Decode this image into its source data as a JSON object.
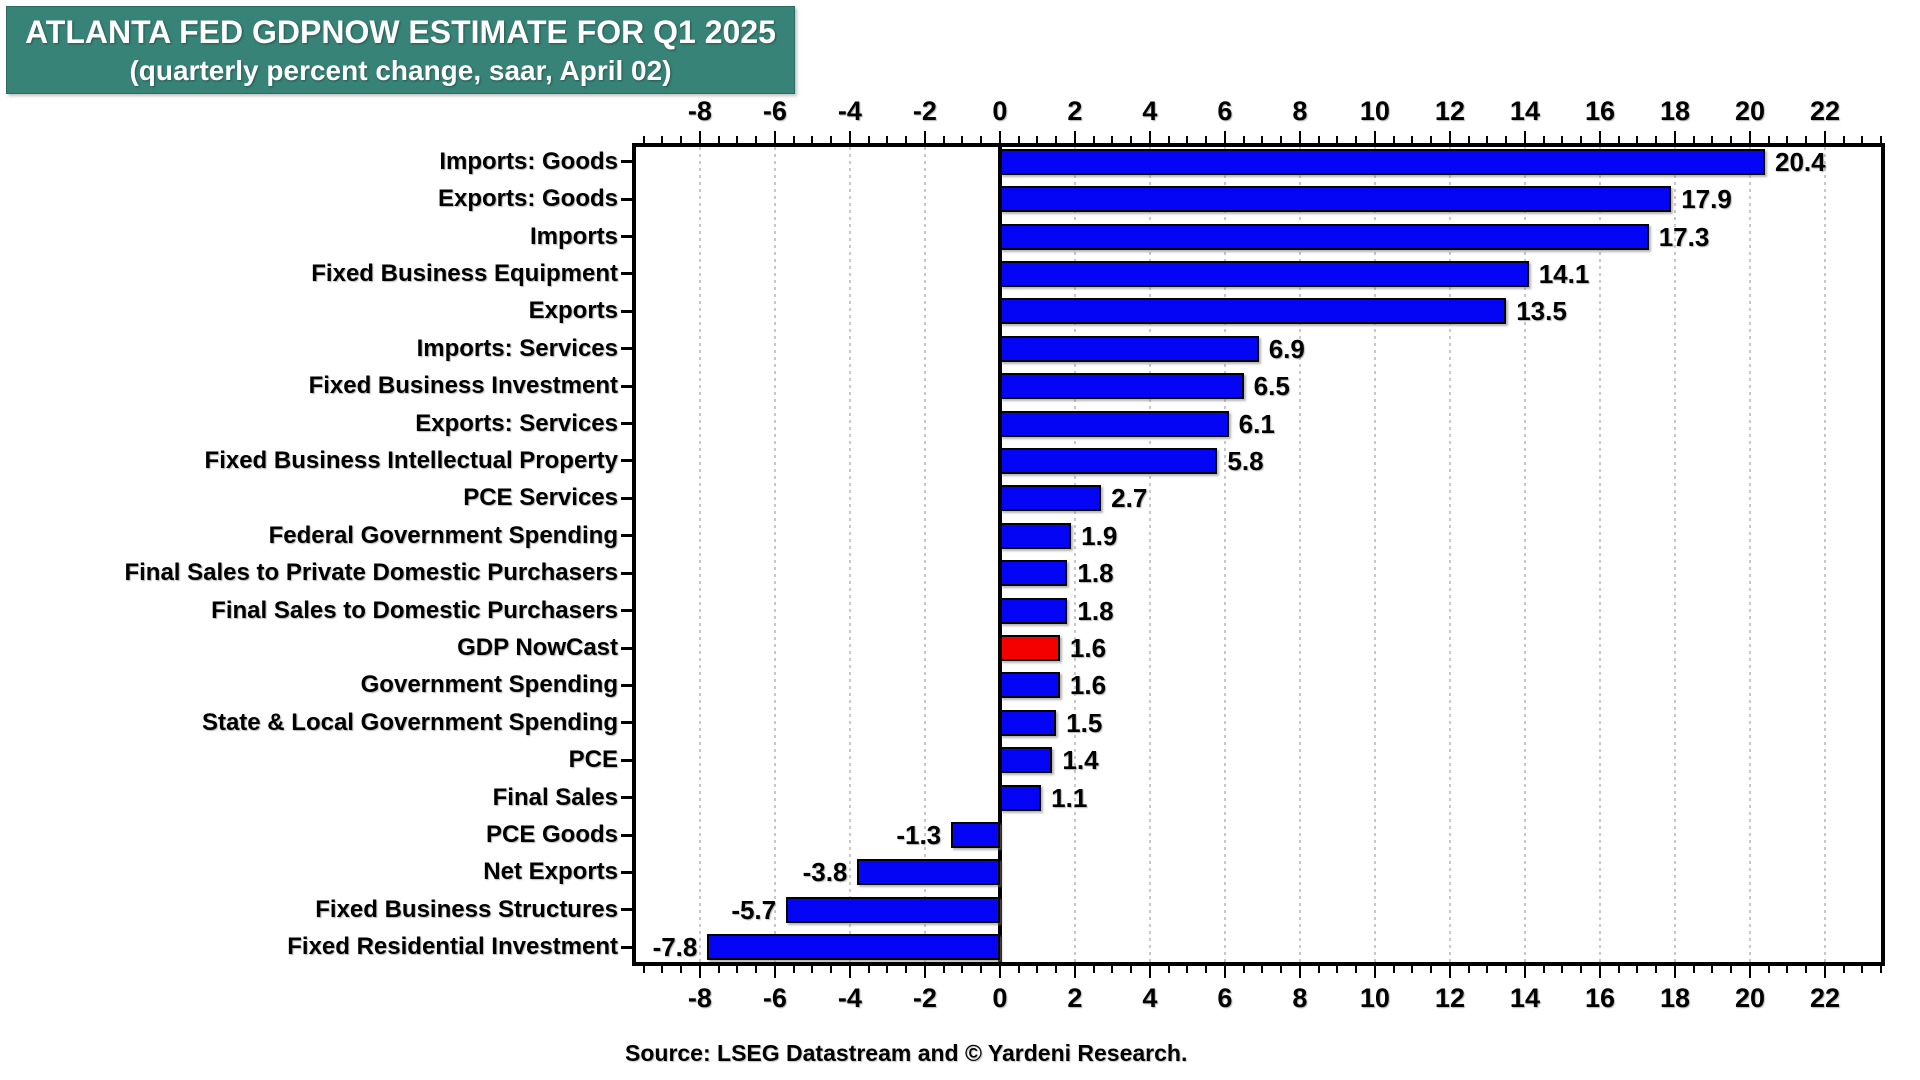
{
  "chart_data": {
    "type": "bar",
    "orientation": "horizontal",
    "title": "ATLANTA FED GDPNOW ESTIMATE FOR Q1 2025",
    "subtitle": "(quarterly percent change, saar, April 02)",
    "source": "Source: LSEG Datastream and © Yardeni Research.",
    "categories": [
      "Imports: Goods",
      "Exports: Goods",
      "Imports",
      "Fixed Business Equipment",
      "Exports",
      "Imports: Services",
      "Fixed Business Investment",
      "Exports: Services",
      "Fixed Business Intellectual Property",
      "PCE Services",
      "Federal Government Spending",
      "Final Sales to Private Domestic Purchasers",
      "Final Sales to Domestic Purchasers",
      "GDP NowCast",
      "Government Spending",
      "State & Local Government Spending",
      "PCE",
      "Final Sales",
      "PCE Goods",
      "Net Exports",
      "Fixed Business Structures",
      "Fixed Residential Investment"
    ],
    "values": [
      20.4,
      17.9,
      17.3,
      14.1,
      13.5,
      6.9,
      6.5,
      6.1,
      5.8,
      2.7,
      1.9,
      1.8,
      1.8,
      1.6,
      1.6,
      1.5,
      1.4,
      1.1,
      -1.3,
      -3.8,
      -5.7,
      -7.8
    ],
    "highlight": {
      "category": "GDP NowCast",
      "index": 13,
      "color": "#f40000"
    },
    "bar_color": "#0505f5",
    "grid_color": "#c8c8c8",
    "title_bg_color": "#388377",
    "title_text_color": "#ffffff",
    "xlim": [
      -9.81,
      23.6
    ],
    "x_major_ticks": [
      -8,
      -6,
      -4,
      -2,
      0,
      2,
      4,
      6,
      8,
      10,
      12,
      14,
      16,
      18,
      20,
      22
    ],
    "minor_tick_step": 0.5,
    "tick_labels_shown": "top-and-bottom",
    "grid": "dotted-vertical",
    "legend": "none"
  }
}
